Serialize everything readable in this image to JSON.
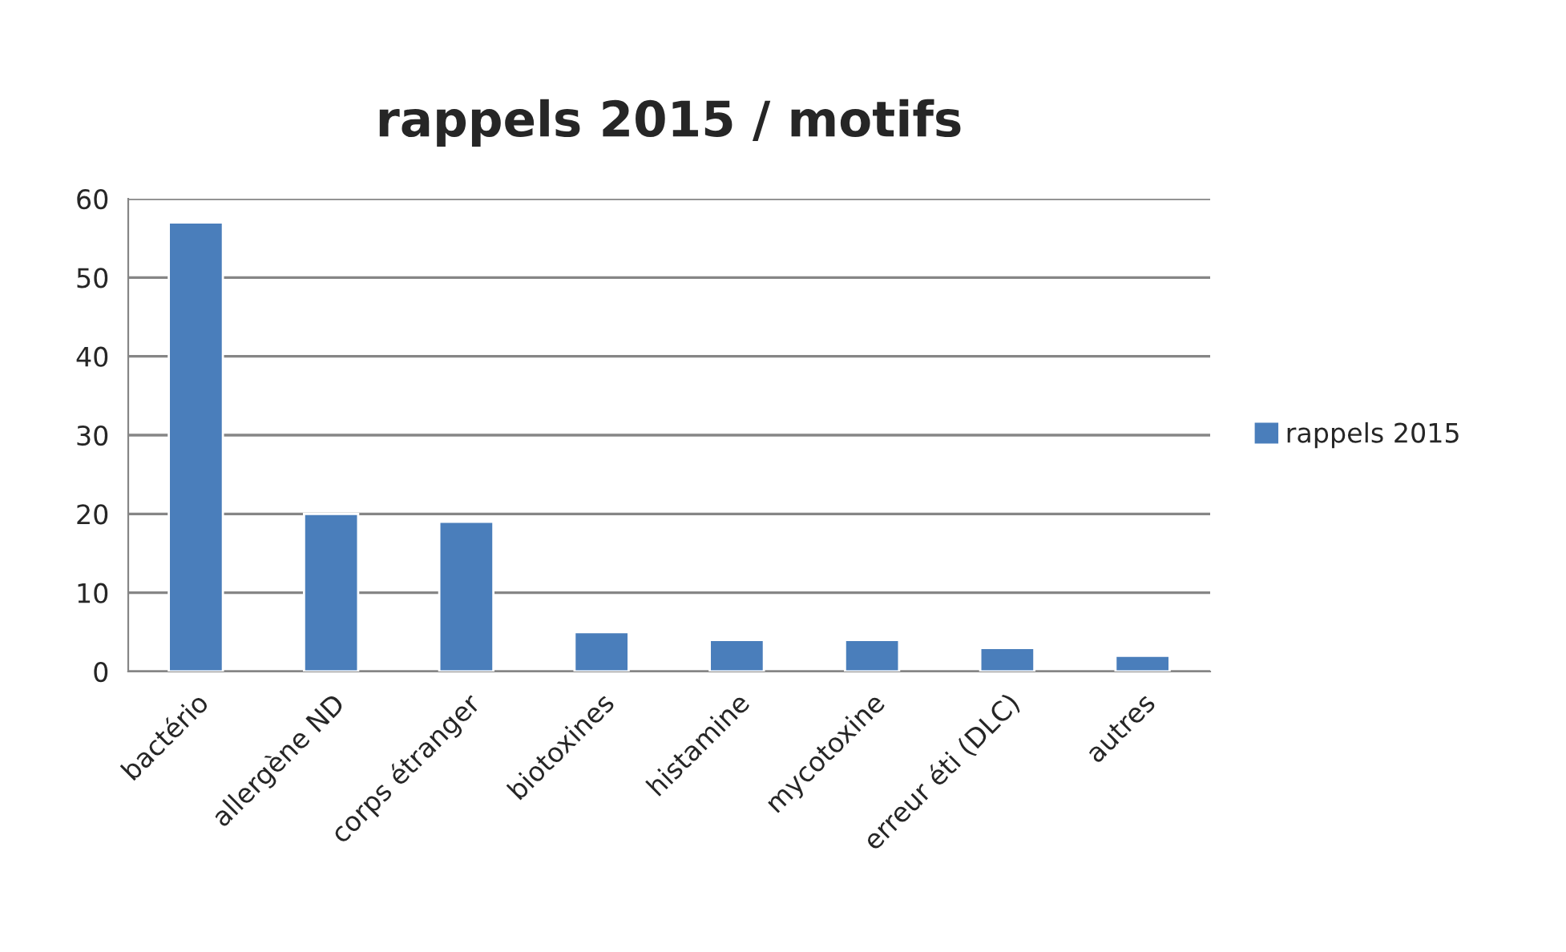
{
  "chart_data": {
    "type": "bar",
    "title": "rappels 2015 / motifs",
    "categories": [
      "bactério",
      "allergène ND",
      "corps étranger",
      "biotoxines",
      "histamine",
      "mycotoxine",
      "erreur éti (DLC)",
      "autres"
    ],
    "series": [
      {
        "name": "rappels 2015",
        "color": "#4a7ebb",
        "values": [
          57,
          20,
          19,
          5,
          4,
          4,
          3,
          2
        ]
      }
    ],
    "ylim": [
      0,
      60
    ],
    "yticks": [
      0,
      10,
      20,
      30,
      40,
      50,
      60
    ],
    "grid": "y",
    "legend": "right"
  }
}
